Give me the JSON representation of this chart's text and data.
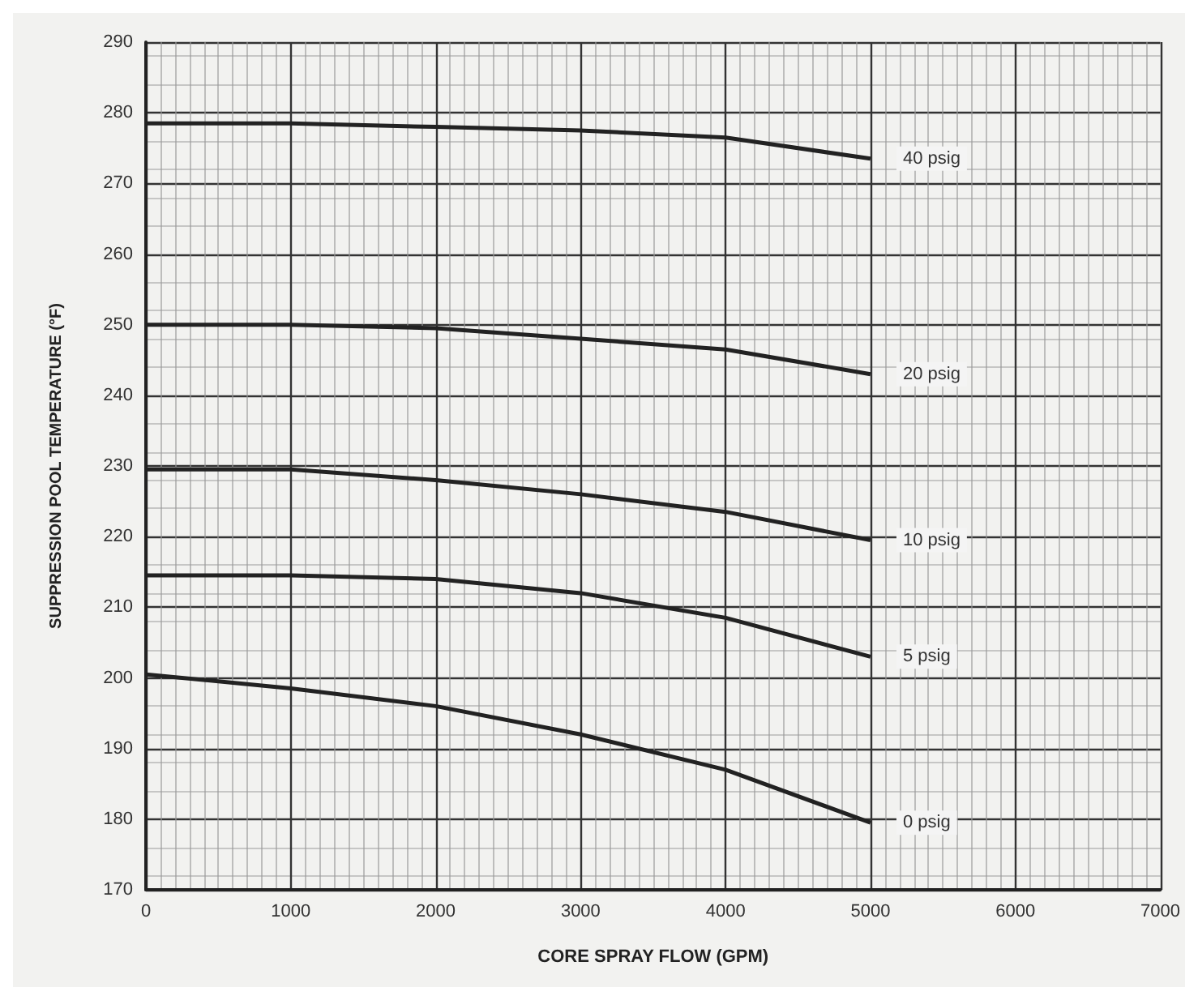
{
  "chart_data": {
    "type": "line",
    "xlabel": "CORE SPRAY FLOW (GPM)",
    "ylabel": "SUPPRESSION POOL TEMPERATURE (°F)",
    "x": [
      0,
      1000,
      2000,
      3000,
      4000,
      5000
    ],
    "series": [
      {
        "name": "40 psig",
        "color": "#222222",
        "values": [
          278.5,
          278.5,
          278,
          277.5,
          276.5,
          273.5
        ]
      },
      {
        "name": "20 psig",
        "color": "#222222",
        "values": [
          250,
          250,
          249.5,
          248,
          246.5,
          243
        ]
      },
      {
        "name": "10 psig",
        "color": "#222222",
        "values": [
          229.5,
          229.5,
          228,
          226,
          223.5,
          219.5
        ]
      },
      {
        "name": "5 psig",
        "color": "#222222",
        "values": [
          214.5,
          214.5,
          214,
          212,
          208.5,
          203
        ]
      },
      {
        "name": "0 psig",
        "color": "#222222",
        "values": [
          200.5,
          198.5,
          196,
          192,
          187,
          179.5
        ]
      }
    ],
    "xlim": [
      0,
      7000
    ],
    "xticks": [
      0,
      1000,
      2000,
      3000,
      4000,
      5000,
      6000,
      7000
    ],
    "ylim": [
      170,
      290
    ],
    "yticks": [
      170,
      180,
      190,
      200,
      210,
      220,
      230,
      240,
      250,
      260,
      270,
      280,
      290
    ],
    "grid": true,
    "marker": "none",
    "line_style": "solid",
    "legend": false
  }
}
